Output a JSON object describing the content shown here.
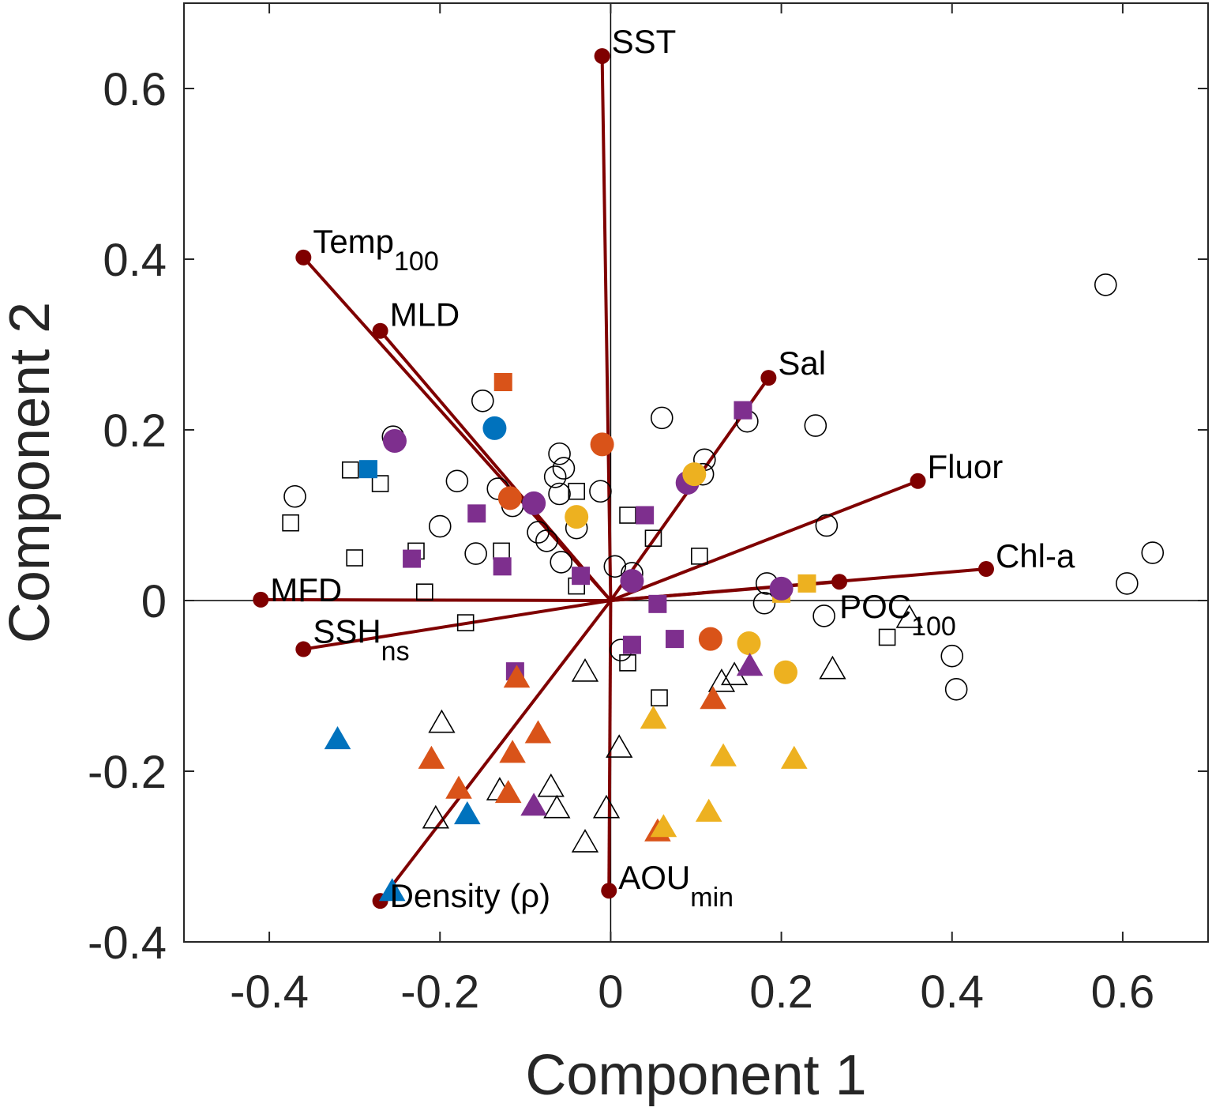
{
  "chart_data": {
    "type": "scatter",
    "subtype": "pca-biplot",
    "xlabel": "Component 1",
    "ylabel": "Component 2",
    "xlim": [
      -0.5,
      0.7
    ],
    "ylim": [
      -0.4,
      0.7
    ],
    "xticks": [
      -0.4,
      -0.2,
      0,
      0.2,
      0.4,
      0.6
    ],
    "xtick_labels": [
      "-0.4",
      "-0.2",
      "0",
      "0.2",
      "0.4",
      "0.6"
    ],
    "yticks": [
      -0.4,
      -0.2,
      0,
      0.2,
      0.4,
      0.6
    ],
    "ytick_labels": [
      "-0.4",
      "-0.2",
      "0",
      "0.2",
      "0.4",
      "0.6"
    ],
    "vector_color": "#7f0000",
    "colors": {
      "none": "#000000",
      "orange": "#d95319",
      "yellow": "#edb120",
      "purple": "#7e2f8e",
      "blue": "#0072bd"
    },
    "vectors": [
      {
        "name": "SST",
        "sub": "",
        "x": -0.01,
        "y": 0.638
      },
      {
        "name": "Temp",
        "sub": "100",
        "x": -0.36,
        "y": 0.402
      },
      {
        "name": "MLD",
        "sub": "",
        "x": -0.27,
        "y": 0.316
      },
      {
        "name": "Sal",
        "sub": "",
        "x": 0.185,
        "y": 0.261
      },
      {
        "name": "Fluor",
        "sub": "",
        "x": 0.36,
        "y": 0.14
      },
      {
        "name": "Chl-a",
        "sub": "",
        "x": 0.44,
        "y": 0.037
      },
      {
        "name": "POC",
        "sub": "100",
        "x": 0.268,
        "y": 0.022
      },
      {
        "name": "MFD",
        "sub": "",
        "x": -0.41,
        "y": 0.001
      },
      {
        "name": "SSH",
        "sub": "ns",
        "x": -0.36,
        "y": -0.057
      },
      {
        "name": "Density (ρ)",
        "sub": "",
        "x": -0.27,
        "y": -0.352
      },
      {
        "name": "AOU",
        "sub": "min",
        "x": -0.002,
        "y": -0.34
      }
    ],
    "points": [
      {
        "x": 0.58,
        "y": 0.37,
        "marker": "circle",
        "fill": "none"
      },
      {
        "x": 0.635,
        "y": 0.056,
        "marker": "circle",
        "fill": "none"
      },
      {
        "x": 0.605,
        "y": 0.02,
        "marker": "circle",
        "fill": "none"
      },
      {
        "x": 0.4,
        "y": -0.065,
        "marker": "circle",
        "fill": "none"
      },
      {
        "x": 0.405,
        "y": -0.104,
        "marker": "circle",
        "fill": "none"
      },
      {
        "x": 0.253,
        "y": 0.088,
        "marker": "circle",
        "fill": "none"
      },
      {
        "x": 0.25,
        "y": -0.018,
        "marker": "circle",
        "fill": "none"
      },
      {
        "x": 0.24,
        "y": 0.205,
        "marker": "circle",
        "fill": "none"
      },
      {
        "x": 0.16,
        "y": 0.21,
        "marker": "circle",
        "fill": "none"
      },
      {
        "x": 0.06,
        "y": 0.214,
        "marker": "circle",
        "fill": "none"
      },
      {
        "x": 0.11,
        "y": 0.165,
        "marker": "circle",
        "fill": "none"
      },
      {
        "x": 0.108,
        "y": 0.148,
        "marker": "circle",
        "fill": "none"
      },
      {
        "x": 0.183,
        "y": 0.02,
        "marker": "circle",
        "fill": "none"
      },
      {
        "x": 0.18,
        "y": -0.003,
        "marker": "circle",
        "fill": "none"
      },
      {
        "x": -0.15,
        "y": 0.234,
        "marker": "circle",
        "fill": "none"
      },
      {
        "x": -0.255,
        "y": 0.192,
        "marker": "circle",
        "fill": "none"
      },
      {
        "x": -0.37,
        "y": 0.122,
        "marker": "circle",
        "fill": "none"
      },
      {
        "x": -0.18,
        "y": 0.14,
        "marker": "circle",
        "fill": "none"
      },
      {
        "x": -0.2,
        "y": 0.087,
        "marker": "circle",
        "fill": "none"
      },
      {
        "x": -0.158,
        "y": 0.055,
        "marker": "circle",
        "fill": "none"
      },
      {
        "x": -0.132,
        "y": 0.131,
        "marker": "circle",
        "fill": "none"
      },
      {
        "x": -0.115,
        "y": 0.111,
        "marker": "circle",
        "fill": "none"
      },
      {
        "x": -0.06,
        "y": 0.172,
        "marker": "circle",
        "fill": "none"
      },
      {
        "x": -0.055,
        "y": 0.155,
        "marker": "circle",
        "fill": "none"
      },
      {
        "x": -0.065,
        "y": 0.145,
        "marker": "circle",
        "fill": "none"
      },
      {
        "x": -0.06,
        "y": 0.125,
        "marker": "circle",
        "fill": "none"
      },
      {
        "x": -0.012,
        "y": 0.128,
        "marker": "circle",
        "fill": "none"
      },
      {
        "x": -0.04,
        "y": 0.085,
        "marker": "circle",
        "fill": "none"
      },
      {
        "x": -0.085,
        "y": 0.08,
        "marker": "circle",
        "fill": "none"
      },
      {
        "x": -0.075,
        "y": 0.07,
        "marker": "circle",
        "fill": "none"
      },
      {
        "x": -0.058,
        "y": 0.045,
        "marker": "circle",
        "fill": "none"
      },
      {
        "x": 0.005,
        "y": 0.04,
        "marker": "circle",
        "fill": "none"
      },
      {
        "x": 0.025,
        "y": 0.032,
        "marker": "circle",
        "fill": "none"
      },
      {
        "x": 0.012,
        "y": -0.058,
        "marker": "circle",
        "fill": "none"
      },
      {
        "x": -0.126,
        "y": 0.256,
        "marker": "square",
        "fill": "orange"
      },
      {
        "x": -0.305,
        "y": 0.153,
        "marker": "square",
        "fill": "none"
      },
      {
        "x": -0.27,
        "y": 0.137,
        "marker": "square",
        "fill": "none"
      },
      {
        "x": -0.375,
        "y": 0.091,
        "marker": "square",
        "fill": "none"
      },
      {
        "x": -0.3,
        "y": 0.05,
        "marker": "square",
        "fill": "none"
      },
      {
        "x": -0.228,
        "y": 0.058,
        "marker": "square",
        "fill": "none"
      },
      {
        "x": -0.218,
        "y": 0.01,
        "marker": "square",
        "fill": "none"
      },
      {
        "x": -0.128,
        "y": 0.058,
        "marker": "square",
        "fill": "none"
      },
      {
        "x": -0.04,
        "y": 0.128,
        "marker": "square",
        "fill": "none"
      },
      {
        "x": -0.04,
        "y": 0.017,
        "marker": "square",
        "fill": "none"
      },
      {
        "x": 0.05,
        "y": 0.073,
        "marker": "square",
        "fill": "none"
      },
      {
        "x": 0.02,
        "y": 0.1,
        "marker": "square",
        "fill": "none"
      },
      {
        "x": 0.104,
        "y": 0.052,
        "marker": "square",
        "fill": "none"
      },
      {
        "x": -0.17,
        "y": -0.026,
        "marker": "square",
        "fill": "none"
      },
      {
        "x": 0.02,
        "y": -0.073,
        "marker": "square",
        "fill": "none"
      },
      {
        "x": 0.057,
        "y": -0.114,
        "marker": "square",
        "fill": "none"
      },
      {
        "x": 0.324,
        "y": -0.043,
        "marker": "square",
        "fill": "none"
      },
      {
        "x": -0.284,
        "y": 0.154,
        "marker": "square",
        "fill": "blue"
      },
      {
        "x": -0.157,
        "y": 0.102,
        "marker": "square",
        "fill": "purple"
      },
      {
        "x": -0.233,
        "y": 0.049,
        "marker": "square",
        "fill": "purple"
      },
      {
        "x": -0.127,
        "y": 0.04,
        "marker": "square",
        "fill": "purple"
      },
      {
        "x": -0.035,
        "y": 0.029,
        "marker": "square",
        "fill": "purple"
      },
      {
        "x": 0.04,
        "y": 0.1,
        "marker": "square",
        "fill": "purple"
      },
      {
        "x": 0.055,
        "y": -0.004,
        "marker": "square",
        "fill": "purple"
      },
      {
        "x": 0.075,
        "y": -0.045,
        "marker": "square",
        "fill": "purple"
      },
      {
        "x": 0.025,
        "y": -0.052,
        "marker": "square",
        "fill": "purple"
      },
      {
        "x": 0.155,
        "y": 0.223,
        "marker": "square",
        "fill": "purple"
      },
      {
        "x": -0.112,
        "y": -0.083,
        "marker": "square",
        "fill": "purple"
      },
      {
        "x": 0.2,
        "y": 0.008,
        "marker": "square",
        "fill": "yellow"
      },
      {
        "x": 0.23,
        "y": 0.02,
        "marker": "square",
        "fill": "yellow"
      },
      {
        "x": -0.136,
        "y": 0.202,
        "marker": "circle",
        "fill": "blue"
      },
      {
        "x": -0.253,
        "y": 0.187,
        "marker": "circle",
        "fill": "purple"
      },
      {
        "x": -0.09,
        "y": 0.114,
        "marker": "circle",
        "fill": "purple"
      },
      {
        "x": 0.09,
        "y": 0.138,
        "marker": "circle",
        "fill": "purple"
      },
      {
        "x": 0.025,
        "y": 0.023,
        "marker": "circle",
        "fill": "purple"
      },
      {
        "x": 0.2,
        "y": 0.014,
        "marker": "circle",
        "fill": "purple"
      },
      {
        "x": -0.01,
        "y": 0.183,
        "marker": "circle",
        "fill": "orange"
      },
      {
        "x": -0.118,
        "y": 0.12,
        "marker": "circle",
        "fill": "orange"
      },
      {
        "x": 0.117,
        "y": -0.045,
        "marker": "circle",
        "fill": "orange"
      },
      {
        "x": 0.098,
        "y": 0.148,
        "marker": "circle",
        "fill": "yellow"
      },
      {
        "x": -0.04,
        "y": 0.098,
        "marker": "circle",
        "fill": "yellow"
      },
      {
        "x": 0.162,
        "y": -0.05,
        "marker": "circle",
        "fill": "yellow"
      },
      {
        "x": 0.205,
        "y": -0.084,
        "marker": "circle",
        "fill": "yellow"
      },
      {
        "x": -0.03,
        "y": -0.083,
        "marker": "triangle",
        "fill": "none"
      },
      {
        "x": 0.13,
        "y": -0.095,
        "marker": "triangle",
        "fill": "none"
      },
      {
        "x": 0.145,
        "y": -0.087,
        "marker": "triangle",
        "fill": "none"
      },
      {
        "x": 0.26,
        "y": -0.08,
        "marker": "triangle",
        "fill": "none"
      },
      {
        "x": 0.35,
        "y": -0.02,
        "marker": "triangle",
        "fill": "none"
      },
      {
        "x": 0.01,
        "y": -0.172,
        "marker": "triangle",
        "fill": "none"
      },
      {
        "x": -0.198,
        "y": -0.143,
        "marker": "triangle",
        "fill": "none"
      },
      {
        "x": -0.13,
        "y": -0.222,
        "marker": "triangle",
        "fill": "none"
      },
      {
        "x": -0.07,
        "y": -0.218,
        "marker": "triangle",
        "fill": "none"
      },
      {
        "x": -0.063,
        "y": -0.243,
        "marker": "triangle",
        "fill": "none"
      },
      {
        "x": -0.005,
        "y": -0.243,
        "marker": "triangle",
        "fill": "none"
      },
      {
        "x": -0.03,
        "y": -0.283,
        "marker": "triangle",
        "fill": "none"
      },
      {
        "x": -0.205,
        "y": -0.255,
        "marker": "triangle",
        "fill": "none"
      },
      {
        "x": -0.11,
        "y": -0.09,
        "marker": "triangle",
        "fill": "orange"
      },
      {
        "x": -0.21,
        "y": -0.185,
        "marker": "triangle",
        "fill": "orange"
      },
      {
        "x": -0.115,
        "y": -0.178,
        "marker": "triangle",
        "fill": "orange"
      },
      {
        "x": -0.085,
        "y": -0.155,
        "marker": "triangle",
        "fill": "orange"
      },
      {
        "x": -0.178,
        "y": -0.22,
        "marker": "triangle",
        "fill": "orange"
      },
      {
        "x": -0.12,
        "y": -0.225,
        "marker": "triangle",
        "fill": "orange"
      },
      {
        "x": 0.12,
        "y": -0.115,
        "marker": "triangle",
        "fill": "orange"
      },
      {
        "x": 0.055,
        "y": -0.27,
        "marker": "triangle",
        "fill": "orange"
      },
      {
        "x": 0.05,
        "y": -0.138,
        "marker": "triangle",
        "fill": "yellow"
      },
      {
        "x": 0.132,
        "y": -0.182,
        "marker": "triangle",
        "fill": "yellow"
      },
      {
        "x": 0.215,
        "y": -0.185,
        "marker": "triangle",
        "fill": "yellow"
      },
      {
        "x": 0.115,
        "y": -0.247,
        "marker": "triangle",
        "fill": "yellow"
      },
      {
        "x": 0.062,
        "y": -0.265,
        "marker": "triangle",
        "fill": "yellow"
      },
      {
        "x": 0.163,
        "y": -0.076,
        "marker": "triangle",
        "fill": "purple"
      },
      {
        "x": -0.09,
        "y": -0.24,
        "marker": "triangle",
        "fill": "purple"
      },
      {
        "x": -0.32,
        "y": -0.162,
        "marker": "triangle",
        "fill": "blue"
      },
      {
        "x": -0.168,
        "y": -0.25,
        "marker": "triangle",
        "fill": "blue"
      },
      {
        "x": -0.256,
        "y": -0.34,
        "marker": "triangle",
        "fill": "blue"
      }
    ]
  }
}
